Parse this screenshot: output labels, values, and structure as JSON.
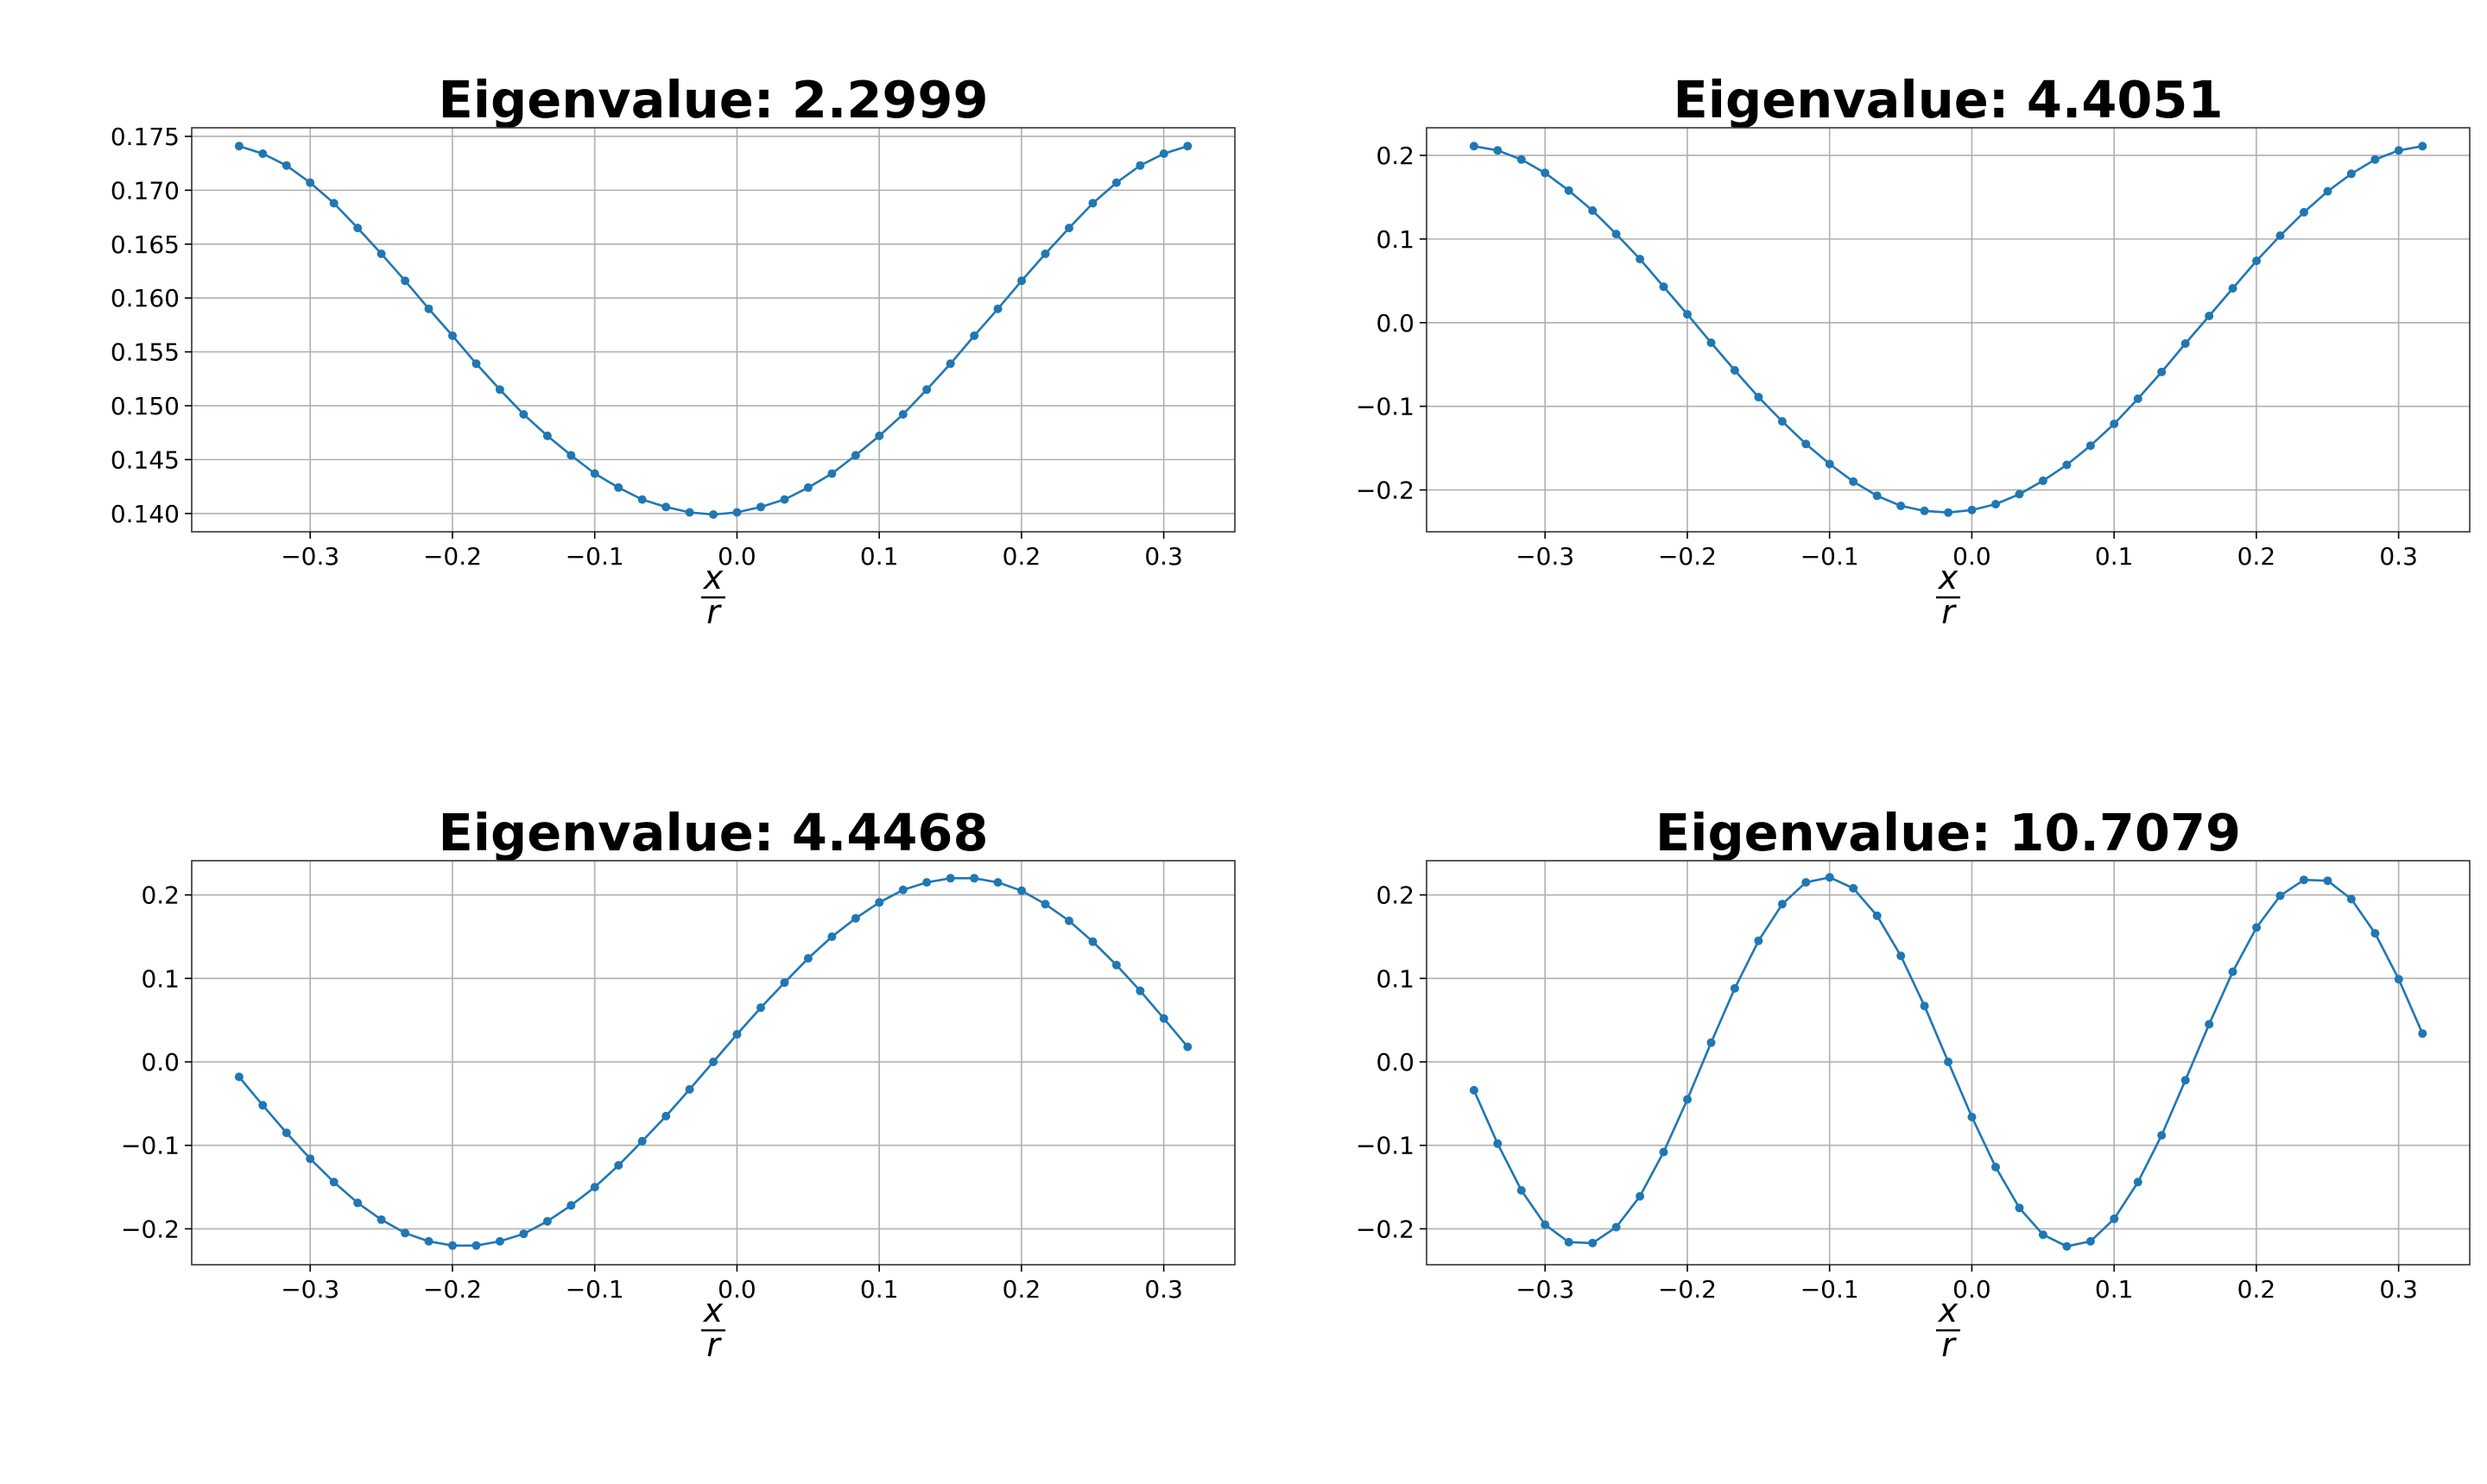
{
  "chart_data": [
    {
      "type": "line",
      "title": "Eigenvalue: 2.2999",
      "xlabel_num": "x",
      "xlabel_den": "r",
      "x_range": [
        -0.3833,
        0.35
      ],
      "x_ticks": [
        -0.3,
        -0.2,
        -0.1,
        0.0,
        0.1,
        0.2,
        0.3
      ],
      "x_tick_labels": [
        "−0.3",
        "−0.2",
        "−0.1",
        "0.0",
        "0.1",
        "0.2",
        "0.3"
      ],
      "ylim": [
        0.1383,
        0.1758
      ],
      "y_ticks": [
        0.14,
        0.145,
        0.15,
        0.155,
        0.16,
        0.165,
        0.17,
        0.175
      ],
      "y_tick_labels": [
        "0.140",
        "0.145",
        "0.150",
        "0.155",
        "0.160",
        "0.165",
        "0.170",
        "0.175"
      ],
      "grid": true,
      "x_start": -0.35,
      "x_step": 0.01667,
      "y": [
        0.1741,
        0.1734,
        0.1723,
        0.1707,
        0.1688,
        0.1665,
        0.1641,
        0.1616,
        0.159,
        0.1565,
        0.1539,
        0.1515,
        0.1492,
        0.1472,
        0.1454,
        0.1437,
        0.1424,
        0.1413,
        0.1406,
        0.1401,
        0.1399,
        0.1401,
        0.1406,
        0.1413,
        0.1424,
        0.1437,
        0.1454,
        0.1472,
        0.1492,
        0.1515,
        0.1539,
        0.1565,
        0.159,
        0.1616,
        0.1641,
        0.1665,
        0.1688,
        0.1707,
        0.1723,
        0.1734,
        0.1741
      ]
    },
    {
      "type": "line",
      "title": "Eigenvalue: 4.4051",
      "xlabel_num": "x",
      "xlabel_den": "r",
      "x_range": [
        -0.3833,
        0.35
      ],
      "x_ticks": [
        -0.3,
        -0.2,
        -0.1,
        0.0,
        0.1,
        0.2,
        0.3
      ],
      "x_tick_labels": [
        "−0.3",
        "−0.2",
        "−0.1",
        "0.0",
        "0.1",
        "0.2",
        "0.3"
      ],
      "ylim": [
        -0.25,
        0.233
      ],
      "y_ticks": [
        -0.2,
        -0.1,
        0.0,
        0.1,
        0.2
      ],
      "y_tick_labels": [
        "−0.2",
        "−0.1",
        "0.0",
        "0.1",
        "0.2"
      ],
      "grid": true,
      "x_start": -0.35,
      "x_step": 0.01667,
      "y": [
        0.211,
        0.206,
        0.195,
        0.179,
        0.158,
        0.134,
        0.106,
        0.076,
        0.043,
        0.01,
        -0.024,
        -0.057,
        -0.089,
        -0.118,
        -0.145,
        -0.169,
        -0.19,
        -0.207,
        -0.219,
        -0.225,
        -0.227,
        -0.224,
        -0.217,
        -0.205,
        -0.189,
        -0.17,
        -0.147,
        -0.121,
        -0.091,
        -0.059,
        -0.025,
        0.008,
        0.041,
        0.074,
        0.104,
        0.132,
        0.157,
        0.178,
        0.195,
        0.206,
        0.211
      ]
    },
    {
      "type": "line",
      "title": "Eigenvalue: 4.4468",
      "xlabel_num": "x",
      "xlabel_den": "r",
      "x_range": [
        -0.3833,
        0.35
      ],
      "x_ticks": [
        -0.3,
        -0.2,
        -0.1,
        0.0,
        0.1,
        0.2,
        0.3
      ],
      "x_tick_labels": [
        "−0.3",
        "−0.2",
        "−0.1",
        "0.0",
        "0.1",
        "0.2",
        "0.3"
      ],
      "ylim": [
        -0.243,
        0.241
      ],
      "y_ticks": [
        -0.2,
        -0.1,
        0.0,
        0.1,
        0.2
      ],
      "y_tick_labels": [
        "−0.2",
        "−0.1",
        "0.0",
        "0.1",
        "0.2"
      ],
      "grid": true,
      "x_start": -0.35,
      "x_step": 0.01667,
      "y": [
        -0.018,
        -0.052,
        -0.085,
        -0.116,
        -0.144,
        -0.169,
        -0.189,
        -0.205,
        -0.215,
        -0.22,
        -0.22,
        -0.215,
        -0.206,
        -0.191,
        -0.172,
        -0.15,
        -0.124,
        -0.095,
        -0.065,
        -0.033,
        0.0,
        0.033,
        0.065,
        0.095,
        0.124,
        0.15,
        0.172,
        0.191,
        0.206,
        0.215,
        0.22,
        0.22,
        0.215,
        0.205,
        0.189,
        0.169,
        0.144,
        0.116,
        0.085,
        0.052,
        0.018
      ]
    },
    {
      "type": "line",
      "title": "Eigenvalue: 10.7079",
      "xlabel_num": "x",
      "xlabel_den": "r",
      "x_range": [
        -0.3833,
        0.35
      ],
      "x_ticks": [
        -0.3,
        -0.2,
        -0.1,
        0.0,
        0.1,
        0.2,
        0.3
      ],
      "x_tick_labels": [
        "−0.3",
        "−0.2",
        "−0.1",
        "0.0",
        "0.1",
        "0.2",
        "0.3"
      ],
      "ylim": [
        -0.243,
        0.241
      ],
      "y_ticks": [
        -0.2,
        -0.1,
        0.0,
        0.1,
        0.2
      ],
      "y_tick_labels": [
        "−0.2",
        "−0.1",
        "0.0",
        "0.1",
        "0.2"
      ],
      "grid": true,
      "x_start": -0.35,
      "x_step": 0.01667,
      "y": [
        -0.034,
        -0.098,
        -0.154,
        -0.195,
        -0.216,
        -0.217,
        -0.198,
        -0.161,
        -0.108,
        -0.045,
        0.023,
        0.088,
        0.145,
        0.189,
        0.215,
        0.221,
        0.208,
        0.175,
        0.127,
        0.067,
        0.0,
        -0.066,
        -0.126,
        -0.175,
        -0.207,
        -0.221,
        -0.215,
        -0.188,
        -0.144,
        -0.088,
        -0.022,
        0.045,
        0.108,
        0.161,
        0.199,
        0.218,
        0.217,
        0.195,
        0.154,
        0.099,
        0.034
      ]
    }
  ]
}
